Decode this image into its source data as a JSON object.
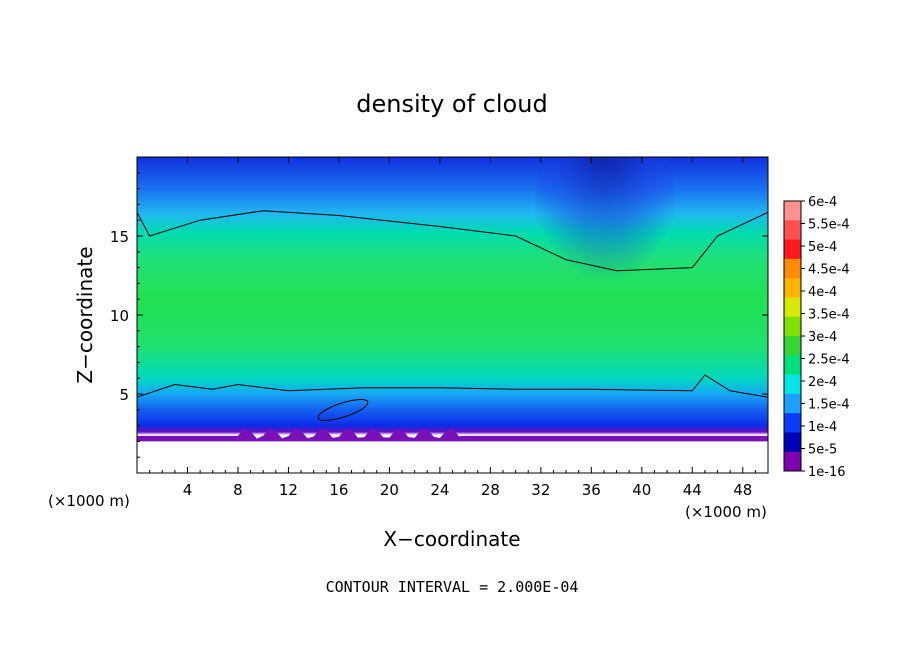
{
  "chart_data": {
    "type": "heatmap",
    "title": "density of cloud",
    "xlabel": "X−coordinate",
    "ylabel": "Z−coordinate",
    "x_unit_left": "(×1000 m)",
    "x_unit_right": "(×1000 m)",
    "xlim": [
      0,
      50
    ],
    "ylim": [
      0,
      20
    ],
    "xticks": [
      4,
      8,
      12,
      16,
      20,
      24,
      28,
      32,
      36,
      40,
      44,
      48
    ],
    "yticks": [
      5,
      10,
      15
    ],
    "colorbar_labels": [
      "6e-4",
      "5.5e-4",
      "5e-4",
      "4.5e-4",
      "4e-4",
      "3.5e-4",
      "3e-4",
      "2.5e-4",
      "2e-4",
      "1.5e-4",
      "1e-4",
      "5e-5",
      "1e-16"
    ],
    "colorbar_colors": [
      "#ff9090",
      "#ff5050",
      "#ff1a1a",
      "#ff8c00",
      "#ffb400",
      "#d8e800",
      "#80e000",
      "#33d633",
      "#00e07a",
      "#00e6e6",
      "#1aa0ff",
      "#0a3cff",
      "#0000b4",
      "#8000b0"
    ],
    "contour_interval": "CONTOUR INTERVAL = 2.000E-04",
    "cloud_layer": {
      "upper_contour_z": [
        [
          0,
          16.5
        ],
        [
          1,
          15
        ],
        [
          5,
          16
        ],
        [
          10,
          16.6
        ],
        [
          16,
          16.3
        ],
        [
          24,
          15.6
        ],
        [
          30,
          15
        ],
        [
          34,
          13.5
        ],
        [
          38,
          12.8
        ],
        [
          44,
          13
        ],
        [
          46,
          15
        ],
        [
          50,
          16.5
        ]
      ],
      "lower_contour_z": [
        [
          0,
          4.8
        ],
        [
          3,
          5.6
        ],
        [
          6,
          5.3
        ],
        [
          8,
          5.6
        ],
        [
          12,
          5.2
        ],
        [
          18,
          5.4
        ],
        [
          24,
          5.4
        ],
        [
          30,
          5.3
        ],
        [
          36,
          5.3
        ],
        [
          44,
          5.2
        ],
        [
          45,
          6.2
        ],
        [
          47,
          5.2
        ],
        [
          50,
          4.8
        ]
      ],
      "ground_z": 2.0
    }
  }
}
